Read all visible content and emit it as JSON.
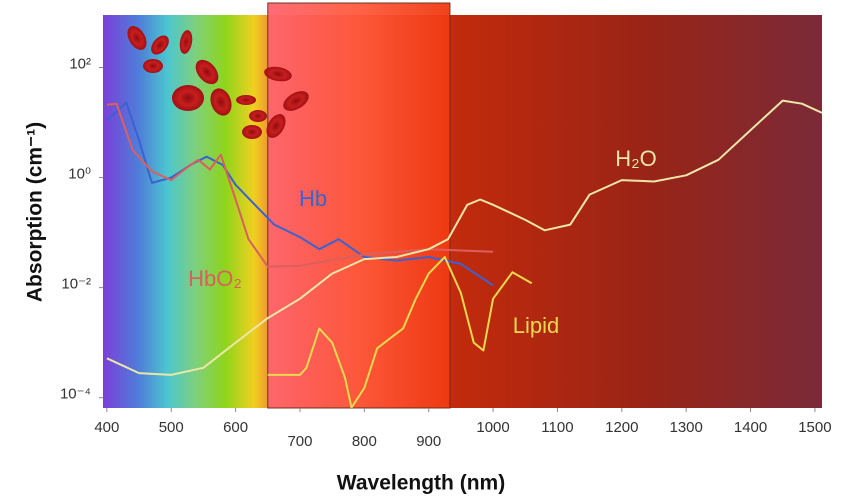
{
  "chart_data": {
    "type": "line",
    "xlabel": "Wavelength (nm)",
    "ylabel": "Absorption (cm⁻¹)",
    "xlim": [
      394,
      1511
    ],
    "xticks": [
      400,
      500,
      600,
      700,
      800,
      900,
      1000,
      1100,
      1200,
      1300,
      1400,
      1500
    ],
    "ylim": [
      6.5e-05,
      900
    ],
    "yscale": "log",
    "yticks": [
      {
        "value": 0.0001,
        "label": "10⁻⁴"
      },
      {
        "value": 0.01,
        "label": "10⁻²"
      },
      {
        "value": 1,
        "label": "10⁰"
      },
      {
        "value": 100,
        "label": "10²"
      }
    ],
    "highlight": [
      650,
      933
    ],
    "series": [
      {
        "name": "Hb",
        "color": "#3b62d0",
        "x": [
          400,
          430,
          450,
          470,
          500,
          530,
          555,
          580,
          600,
          630,
          660,
          700,
          730,
          760,
          800,
          850,
          900,
          950,
          1000
        ],
        "values": [
          11,
          23,
          4.8,
          0.8,
          1.0,
          1.7,
          2.4,
          1.7,
          0.74,
          0.32,
          0.14,
          0.083,
          0.05,
          0.076,
          0.036,
          0.031,
          0.036,
          0.027,
          0.011
        ]
      },
      {
        "name": "HbO₂",
        "color": "#d9605e",
        "x": [
          400,
          415,
          440,
          470,
          500,
          530,
          542,
          560,
          577,
          600,
          620,
          650,
          700,
          800,
          900,
          1000
        ],
        "values": [
          21,
          22,
          3.2,
          1.3,
          0.9,
          1.7,
          2.1,
          1.4,
          2.6,
          0.4,
          0.076,
          0.024,
          0.025,
          0.04,
          0.05,
          0.045
        ]
      },
      {
        "name": "H₂O",
        "color": "#ece6a8",
        "x": [
          400,
          450,
          500,
          550,
          600,
          650,
          700,
          750,
          800,
          850,
          900,
          930,
          960,
          980,
          1000,
          1050,
          1080,
          1120,
          1150,
          1200,
          1250,
          1300,
          1350,
          1400,
          1450,
          1480,
          1511
        ],
        "values": [
          0.00052,
          0.00028,
          0.00026,
          0.00035,
          0.001,
          0.0028,
          0.0063,
          0.018,
          0.033,
          0.036,
          0.05,
          0.076,
          0.32,
          0.4,
          0.32,
          0.17,
          0.11,
          0.14,
          0.49,
          0.9,
          0.85,
          1.1,
          2.1,
          7.3,
          25,
          22,
          15
        ]
      },
      {
        "name": "Lipid",
        "color": "#ead94e",
        "x": [
          650,
          700,
          710,
          730,
          750,
          770,
          780,
          800,
          820,
          840,
          860,
          880,
          900,
          925,
          950,
          970,
          985,
          1000,
          1030,
          1060
        ],
        "values": [
          0.00026,
          0.00026,
          0.00035,
          0.0018,
          0.001,
          0.00023,
          6.6e-05,
          0.00015,
          0.00079,
          0.0012,
          0.0018,
          0.0063,
          0.018,
          0.036,
          0.008,
          0.001,
          0.00072,
          0.0063,
          0.019,
          0.012
        ]
      }
    ]
  }
}
